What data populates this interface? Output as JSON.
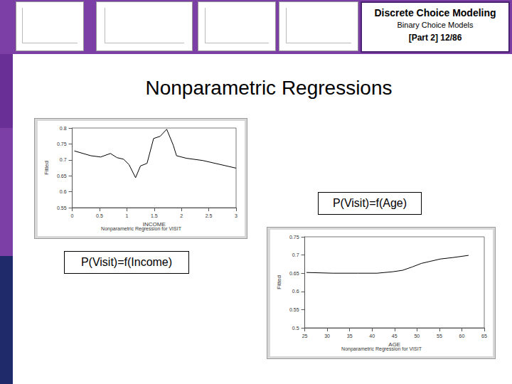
{
  "slide": {
    "header": {
      "title": "Discrete Choice Modeling",
      "subtitle": "Binary Choice Models",
      "part": "[Part 2]  12/86"
    },
    "title": "Nonparametric Regressions",
    "labels": [
      "P(Visit)=f(Age)",
      "P(Visit)=f(Income)"
    ]
  },
  "chart_data": [
    {
      "type": "line",
      "title": "Nonparametric Regression for VISIT",
      "x_label": "INCOME",
      "y_label": "Fitted",
      "x": [
        0.04,
        0.34,
        0.52,
        0.7,
        0.82,
        0.94,
        1.04,
        1.16,
        1.25,
        1.37,
        1.49,
        1.61,
        1.73,
        1.85,
        1.91,
        2.09,
        2.39,
        3.0
      ],
      "values": [
        0.728,
        0.713,
        0.709,
        0.72,
        0.707,
        0.702,
        0.685,
        0.644,
        0.681,
        0.689,
        0.767,
        0.774,
        0.796,
        0.746,
        0.713,
        0.705,
        0.698,
        0.674
      ],
      "xlim": [
        0,
        3
      ],
      "xticks": [
        0,
        0.5,
        1,
        1.5,
        2,
        2.5,
        3
      ],
      "ylim": [
        0.55,
        0.8
      ],
      "yticks": [
        0.55,
        0.6,
        0.65,
        0.7,
        0.75,
        0.8
      ],
      "color": "#000000",
      "grid": false,
      "marker": "none",
      "line_style": "solid"
    },
    {
      "type": "line",
      "title": "Nonparametric Regression for VISIT",
      "x_label": "AGE",
      "y_label": "Fitted",
      "x": [
        25.4,
        31.3,
        36.9,
        41.1,
        44.6,
        46.8,
        48.9,
        51.0,
        53.1,
        55.2,
        58.0,
        61.5
      ],
      "values": [
        0.652,
        0.65,
        0.65,
        0.65,
        0.654,
        0.658,
        0.667,
        0.677,
        0.683,
        0.689,
        0.693,
        0.699
      ],
      "xlim": [
        25,
        65
      ],
      "xticks": [
        25,
        30,
        35,
        40,
        45,
        50,
        55,
        60,
        65
      ],
      "ylim": [
        0.5,
        0.75
      ],
      "yticks": [
        0.5,
        0.55,
        0.6,
        0.65,
        0.7,
        0.75
      ],
      "color": "#000000",
      "grid": false,
      "marker": "none",
      "line_style": "solid"
    }
  ]
}
